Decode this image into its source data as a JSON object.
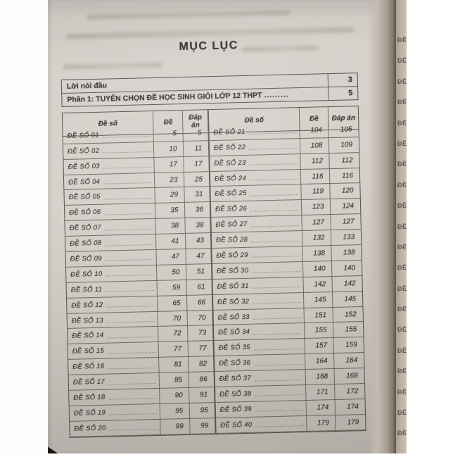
{
  "title": "MỤC LỤC",
  "front_matter": [
    {
      "label": "Lời nói đầu",
      "leader": "",
      "page": "3"
    },
    {
      "label": "Phần 1: TUYỂN CHỌN ĐỀ HỌC SINH GIỎI LỚP 12 THPT",
      "leader": ".........",
      "page": "5"
    }
  ],
  "toc_table": {
    "headers": {
      "de_so": "Đề số",
      "de": "Đề",
      "dap_an": "Đáp án"
    },
    "left": [
      {
        "label": "ĐỀ SỐ 01",
        "de": "5",
        "dap": "5"
      },
      {
        "label": "ĐỀ SỐ 02",
        "de": "10",
        "dap": "11"
      },
      {
        "label": "ĐỀ SỐ 03",
        "de": "17",
        "dap": "17"
      },
      {
        "label": "ĐỀ SỐ 04",
        "de": "23",
        "dap": "25"
      },
      {
        "label": "ĐỀ SỐ 05",
        "de": "29",
        "dap": "31"
      },
      {
        "label": "ĐỀ SỐ 06",
        "de": "35",
        "dap": "36"
      },
      {
        "label": "ĐỀ SỐ 07",
        "de": "38",
        "dap": "38"
      },
      {
        "label": "ĐỀ SỐ 08",
        "de": "41",
        "dap": "43"
      },
      {
        "label": "ĐỀ SỐ 09",
        "de": "47",
        "dap": "47"
      },
      {
        "label": "ĐỀ SỐ 10",
        "de": "50",
        "dap": "51"
      },
      {
        "label": "ĐỀ SỐ 11",
        "de": "59",
        "dap": "61"
      },
      {
        "label": "ĐỀ SỐ 12",
        "de": "65",
        "dap": "66"
      },
      {
        "label": "ĐỀ SỐ 13",
        "de": "70",
        "dap": "70"
      },
      {
        "label": "ĐỀ SỐ 14",
        "de": "72",
        "dap": "73"
      },
      {
        "label": "ĐỀ SỐ 15",
        "de": "77",
        "dap": "77"
      },
      {
        "label": "ĐỀ SỐ 16",
        "de": "81",
        "dap": "82"
      },
      {
        "label": "ĐỀ SỐ 17",
        "de": "85",
        "dap": "86"
      },
      {
        "label": "ĐỀ SỐ 18",
        "de": "90",
        "dap": "91"
      },
      {
        "label": "ĐỀ SỐ 19",
        "de": "95",
        "dap": "95"
      },
      {
        "label": "ĐỀ SỐ 20",
        "de": "99",
        "dap": "99"
      }
    ],
    "right": [
      {
        "label": "ĐỀ SỐ 21",
        "de": "104",
        "dap": "105"
      },
      {
        "label": "ĐỀ SỐ 22",
        "de": "108",
        "dap": "109"
      },
      {
        "label": "ĐỀ SỐ 23",
        "de": "112",
        "dap": "112"
      },
      {
        "label": "ĐỀ SỐ 24",
        "de": "116",
        "dap": "116"
      },
      {
        "label": "ĐỀ SỐ 25",
        "de": "119",
        "dap": "120"
      },
      {
        "label": "ĐỀ SỐ 26",
        "de": "123",
        "dap": "124"
      },
      {
        "label": "ĐỀ SỐ 27",
        "de": "127",
        "dap": "127"
      },
      {
        "label": "ĐỀ SỐ 28",
        "de": "132",
        "dap": "133"
      },
      {
        "label": "ĐỀ SỐ 29",
        "de": "138",
        "dap": "138"
      },
      {
        "label": "ĐỀ SỐ 30",
        "de": "140",
        "dap": "140"
      },
      {
        "label": "ĐỀ SỐ 31",
        "de": "142",
        "dap": "142"
      },
      {
        "label": "ĐỀ SỐ 32",
        "de": "145",
        "dap": "145"
      },
      {
        "label": "ĐỀ SỐ 33",
        "de": "151",
        "dap": "152"
      },
      {
        "label": "ĐỀ SỐ 34",
        "de": "155",
        "dap": "155"
      },
      {
        "label": "ĐỀ SỐ 35",
        "de": "157",
        "dap": "159"
      },
      {
        "label": "ĐỀ SỐ 36",
        "de": "164",
        "dap": "164"
      },
      {
        "label": "ĐỀ SỐ 37",
        "de": "168",
        "dap": "168"
      },
      {
        "label": "ĐỀ SỐ 38",
        "de": "171",
        "dap": "172"
      },
      {
        "label": "ĐỀ SỐ 39",
        "de": "174",
        "dap": "174"
      },
      {
        "label": "ĐỀ SỐ 40",
        "de": "179",
        "dap": "179"
      }
    ]
  },
  "edge_strip": {
    "glyph": "ĐỀ",
    "repeat": 20
  },
  "colors": {
    "page_background": "#d2ccc6",
    "ink": "#403a33",
    "table_border": "#55504a",
    "next_page_edge": "#b3a89a"
  }
}
